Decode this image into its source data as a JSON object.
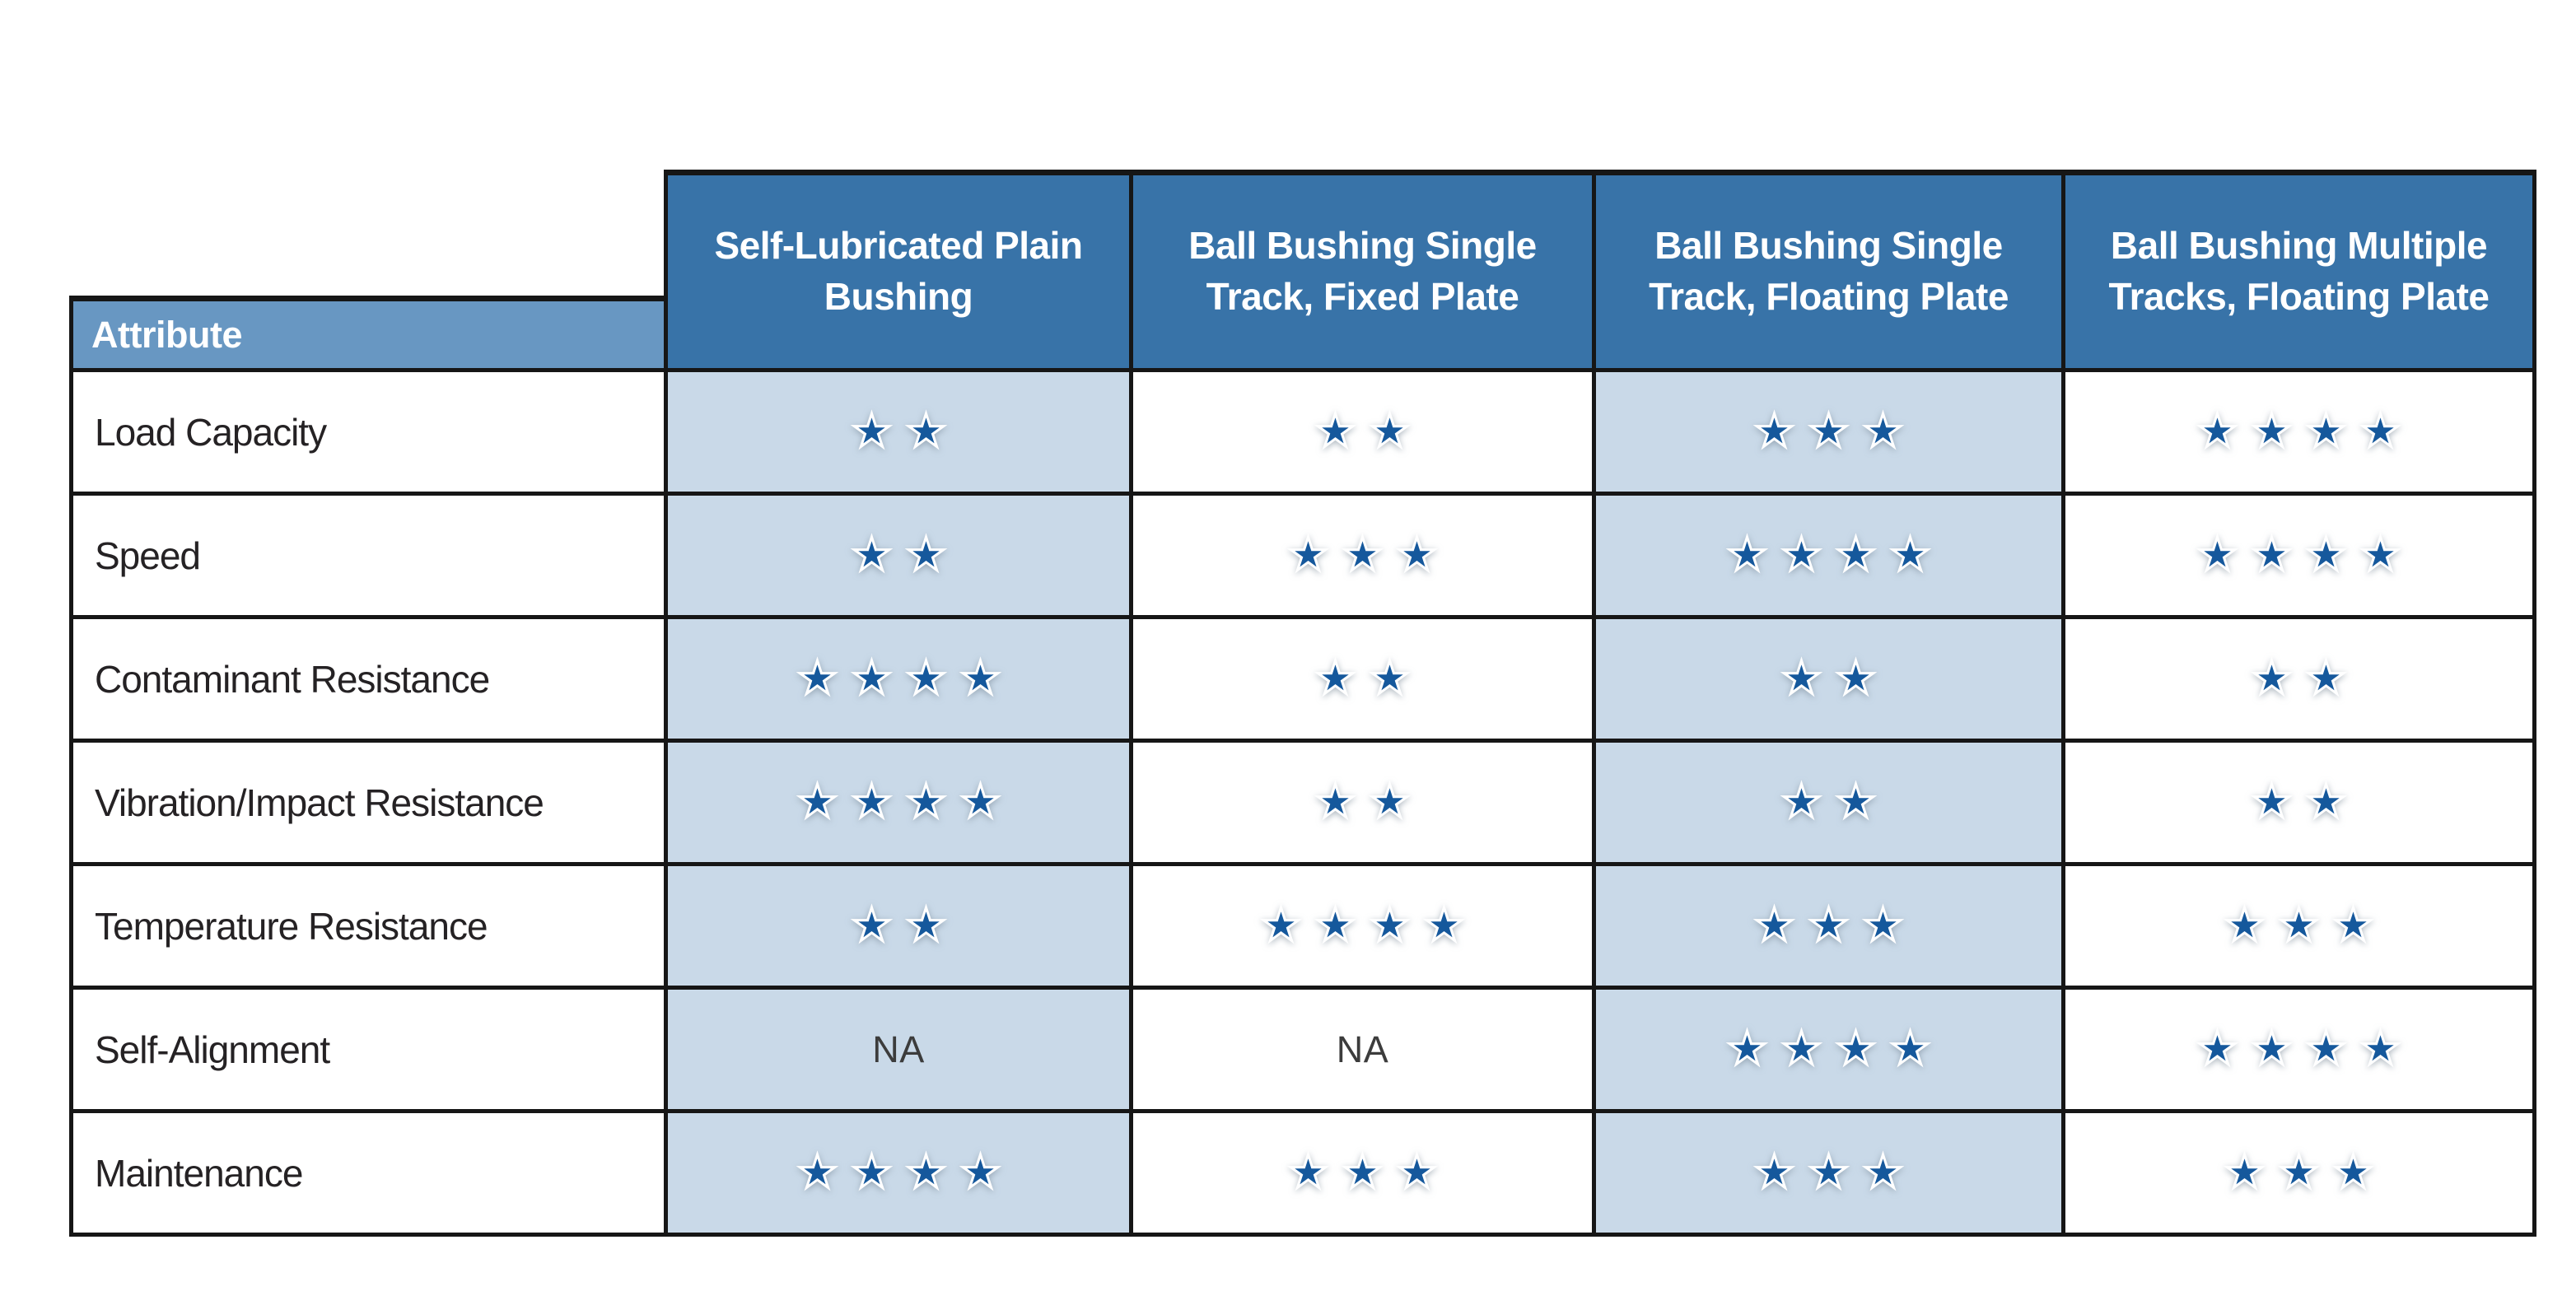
{
  "table": {
    "corner_header": "Attribute",
    "columns": [
      {
        "label": "Self-Lubricated Plain Bushing"
      },
      {
        "label": "Ball Bushing Single Track, Fixed Plate"
      },
      {
        "label": "Ball Bushing Single Track, Floating Plate"
      },
      {
        "label": "Ball Bushing Multiple Tracks, Floating Plate"
      }
    ],
    "na_label": "NA",
    "rating_max": 4,
    "rows": [
      {
        "attribute": "Load Capacity",
        "ratings": [
          2,
          2,
          3,
          4
        ]
      },
      {
        "attribute": "Speed",
        "ratings": [
          2,
          3,
          4,
          4
        ]
      },
      {
        "attribute": "Contaminant Resistance",
        "ratings": [
          4,
          2,
          2,
          2
        ]
      },
      {
        "attribute": "Vibration/Impact Resistance",
        "ratings": [
          4,
          2,
          2,
          2
        ]
      },
      {
        "attribute": "Temperature Resistance",
        "ratings": [
          2,
          4,
          3,
          3
        ]
      },
      {
        "attribute": "Self-Alignment",
        "ratings": [
          null,
          null,
          4,
          4
        ]
      },
      {
        "attribute": "Maintenance",
        "ratings": [
          4,
          3,
          3,
          3
        ]
      }
    ],
    "colors": {
      "border": "#161616",
      "header_bg": "#3873a8",
      "attribute_header_bg": "#6897c2",
      "shaded_column_bg": "#c9d9e8",
      "star_fill": "#15589c",
      "star_outline": "#ffffff"
    }
  },
  "chart_data": {
    "type": "table",
    "columns": [
      "Attribute",
      "Self-Lubricated Plain Bushing",
      "Ball Bushing Single Track, Fixed Plate",
      "Ball Bushing Single Track, Floating Plate",
      "Ball Bushing Multiple Tracks, Floating Plate"
    ],
    "rows": [
      [
        "Load Capacity",
        2,
        2,
        3,
        4
      ],
      [
        "Speed",
        2,
        3,
        4,
        4
      ],
      [
        "Contaminant Resistance",
        4,
        2,
        2,
        2
      ],
      [
        "Vibration/Impact Resistance",
        4,
        2,
        2,
        2
      ],
      [
        "Temperature Resistance",
        2,
        4,
        3,
        3
      ],
      [
        "Self-Alignment",
        "NA",
        "NA",
        4,
        4
      ],
      [
        "Maintenance",
        4,
        3,
        3,
        3
      ]
    ],
    "value_unit": "stars",
    "value_range": [
      0,
      4
    ]
  }
}
